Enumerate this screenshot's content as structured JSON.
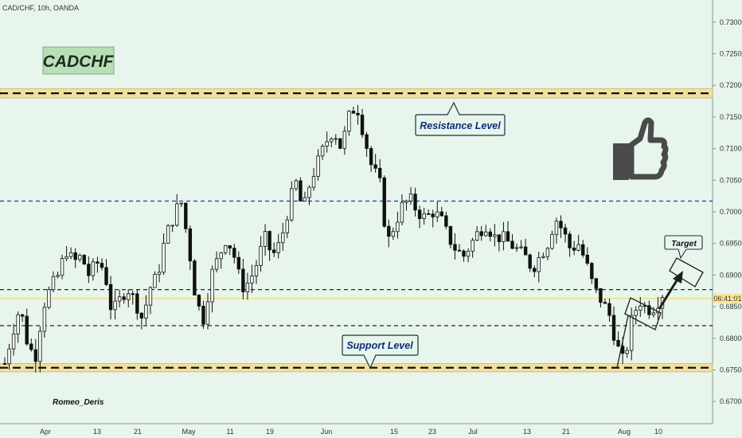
{
  "symbol_label": "CAD/CHF, 10h, OANDA",
  "title_badge": "CADCHF",
  "author": "Romeo_Deris",
  "annotations": {
    "resistance": "Resistance Level",
    "support": "Support Level",
    "target": "Target"
  },
  "icons": [
    "thumbs-up-icon"
  ],
  "colors": {
    "background": "#e7f5ec",
    "up_candle": "#333333",
    "down_candle": "#000000",
    "zone_fill": "#f2dfa0",
    "blue_dash": "#1a2ed6",
    "badge_fill": "#b8e0b8",
    "current_price_line": "#f3d35b",
    "price_label_bg": "#fbe49a"
  },
  "current_price_label": "06:41:01",
  "chart_data": {
    "type": "candlestick",
    "title": "",
    "xlabel": "",
    "ylabel": "",
    "ylim": [
      0.6665,
      0.7335
    ],
    "y_ticks": [
      "0.73000",
      "0.72500",
      "0.72000",
      "0.71500",
      "0.71000",
      "0.70500",
      "0.70000",
      "0.69500",
      "0.69000",
      "0.68500",
      "0.68000",
      "0.67500",
      "0.67000"
    ],
    "x_ticks": [
      "Apr",
      "13",
      "21",
      "May",
      "11",
      "19",
      "Jun",
      "15",
      "23",
      "Jul",
      "13",
      "21",
      "Aug",
      "10"
    ],
    "grid": false,
    "levels": {
      "resistance_zone": [
        0.718,
        0.7195
      ],
      "support_zone": [
        0.6747,
        0.676
      ],
      "blue_dashed_line": 0.7017,
      "black_dashed_upper": 0.6877,
      "black_dashed_lower": 0.682,
      "current_price": 0.6863
    },
    "close_path_approx": [
      0.676,
      0.681,
      0.685,
      0.679,
      0.677,
      0.685,
      0.688,
      0.69,
      0.694,
      0.692,
      0.693,
      0.69,
      0.692,
      0.691,
      0.684,
      0.686,
      0.688,
      0.686,
      0.683,
      0.688,
      0.69,
      0.696,
      0.699,
      0.702,
      0.695,
      0.686,
      0.683,
      0.69,
      0.693,
      0.696,
      0.693,
      0.688,
      0.689,
      0.692,
      0.696,
      0.693,
      0.695,
      0.7,
      0.705,
      0.7,
      0.705,
      0.708,
      0.711,
      0.713,
      0.71,
      0.715,
      0.717,
      0.712,
      0.707,
      0.705,
      0.695,
      0.698,
      0.701,
      0.702,
      0.7,
      0.699,
      0.7,
      0.699,
      0.696,
      0.694,
      0.693,
      0.695,
      0.697,
      0.698,
      0.696,
      0.696,
      0.695,
      0.694,
      0.693,
      0.691,
      0.693,
      0.695,
      0.699,
      0.697,
      0.694,
      0.695,
      0.692,
      0.688,
      0.686,
      0.684,
      0.679,
      0.676,
      0.683,
      0.686,
      0.6845,
      0.685,
      0.687
    ]
  }
}
